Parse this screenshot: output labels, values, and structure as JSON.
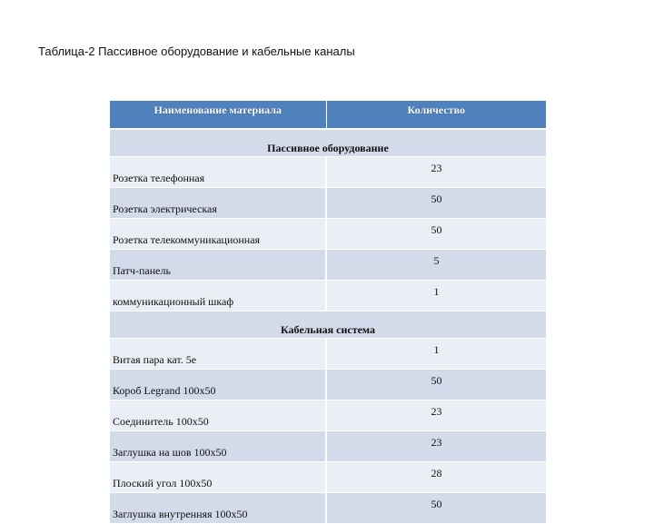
{
  "caption": "Таблица-2 Пассивное оборудование и кабельные каналы",
  "table": {
    "headers": [
      "Наименование материала",
      "Количество"
    ],
    "sections": [
      {
        "title": "Пассивное оборудование",
        "rows": [
          {
            "name": "Розетка телефонная",
            "qty": "23"
          },
          {
            "name": "Розетка электрическая",
            "qty": "50"
          },
          {
            "name": "Розетка телекоммуникационная",
            "qty": "50"
          },
          {
            "name": "Патч-панель",
            "qty": "5"
          },
          {
            "name": "коммуникационный шкаф",
            "qty": "1"
          }
        ]
      },
      {
        "title": "Кабельная система",
        "rows": [
          {
            "name": "Витая пара кат. 5е",
            "qty": "1"
          },
          {
            "name": "Короб Legrand 100х50",
            "qty": "50"
          },
          {
            "name": "Соединитель 100х50",
            "qty": "23"
          },
          {
            "name": "Заглушка на шов 100х50",
            "qty": "23"
          },
          {
            "name": "Плоский угол 100х50",
            "qty": "28"
          },
          {
            "name": "Заглушка внутренняя 100х50",
            "qty": "50"
          }
        ]
      }
    ]
  },
  "colors": {
    "header_bg": "#4f81bd",
    "row_dark": "#d3dae9",
    "row_light": "#eaeef5"
  }
}
